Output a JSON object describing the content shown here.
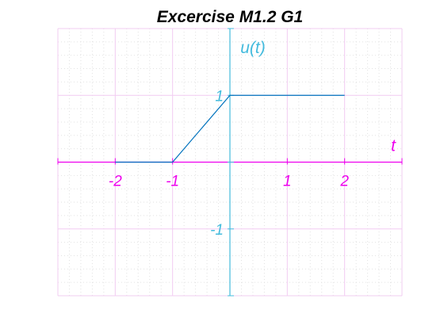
{
  "colors": {
    "x_axis": "#ee00ee",
    "y_axis": "#44bbdd",
    "series": "#0072bd",
    "major_grid": "#f2ccf2",
    "minor_grid": "#e2e2e2",
    "title": "#000000"
  },
  "chart_data": {
    "type": "line",
    "title": "Excercise M1.2 G1",
    "xlabel": "t",
    "ylabel": "u(t)",
    "xlim": [
      -3,
      3
    ],
    "ylim": [
      -2,
      2
    ],
    "x_ticks": [
      -2,
      -1,
      1,
      2
    ],
    "x_tick_labels": [
      "-2",
      "-1",
      "1",
      "2"
    ],
    "y_ticks": [
      1,
      -1
    ],
    "y_tick_labels": [
      "1",
      "-1"
    ],
    "grid": true,
    "minor_grid": true,
    "axes_through_origin": true,
    "legend": "none",
    "series": [
      {
        "x": [
          -2,
          -1,
          0,
          2
        ],
        "y": [
          0,
          0,
          1,
          1
        ]
      }
    ]
  }
}
